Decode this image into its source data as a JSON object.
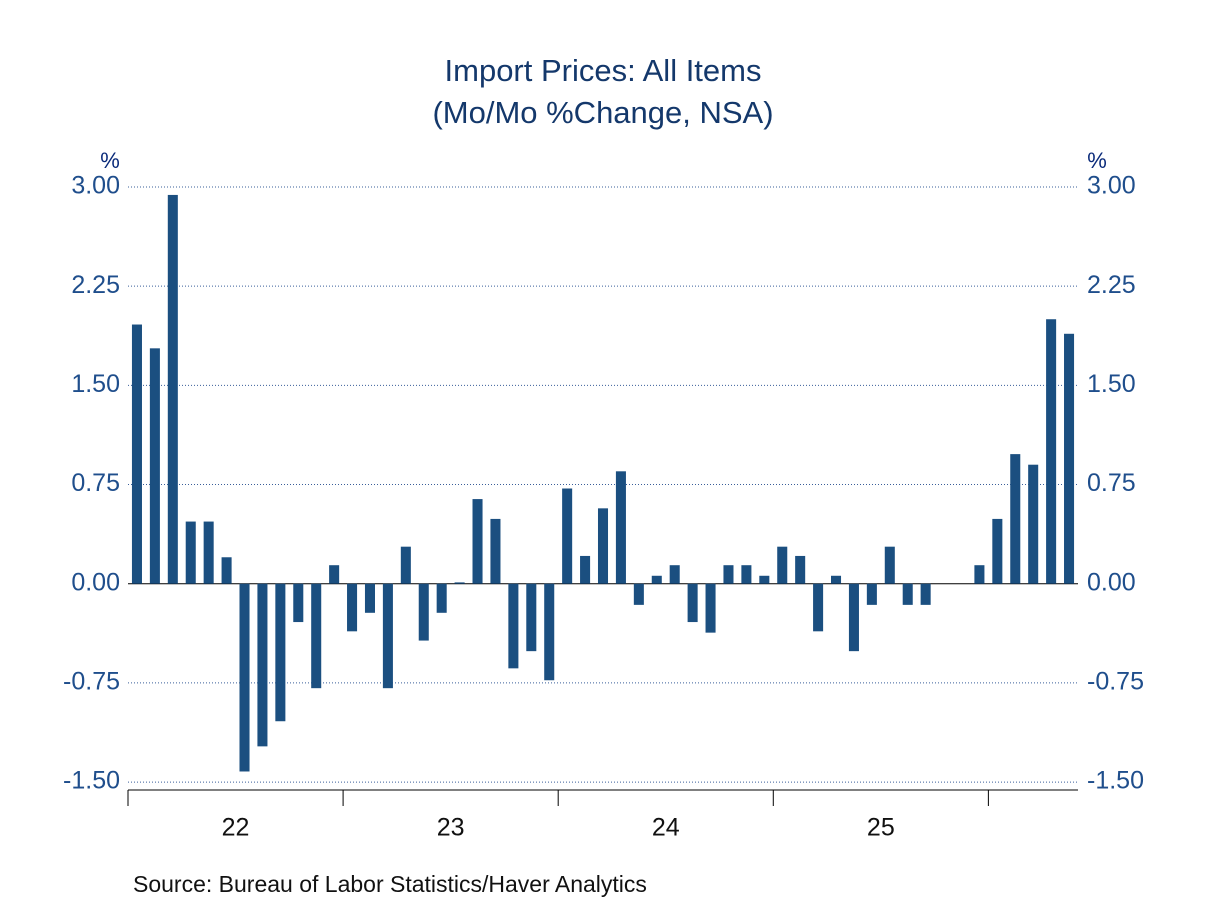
{
  "chart_data": {
    "type": "bar",
    "title": "Import Prices: All Items",
    "subtitle": "(Mo/Mo %Change, NSA)",
    "ylabel": "%",
    "y2label": "%",
    "source": "Source:  Bureau of Labor Statistics/Haver Analytics",
    "color": "#1b4f80",
    "grid": true,
    "categories": [
      null,
      null,
      null,
      null,
      null,
      null,
      "22",
      null,
      null,
      null,
      null,
      null,
      null,
      null,
      null,
      null,
      null,
      null,
      "23",
      null,
      null,
      null,
      null,
      null,
      null,
      null,
      null,
      null,
      null,
      null,
      "24",
      null,
      null,
      null,
      null,
      null,
      null,
      null,
      null,
      null,
      null,
      null,
      "25",
      null,
      null,
      null,
      null,
      null,
      null,
      null,
      null,
      null,
      null
    ],
    "values": [
      1.96,
      1.78,
      2.94,
      0.47,
      0.47,
      0.2,
      -1.42,
      -1.23,
      -1.04,
      -0.29,
      -0.79,
      0.14,
      -0.36,
      -0.22,
      -0.79,
      0.28,
      -0.43,
      -0.22,
      0.01,
      0.64,
      0.49,
      -0.64,
      -0.51,
      -0.73,
      0.72,
      0.21,
      0.57,
      0.85,
      -0.16,
      0.06,
      0.14,
      -0.29,
      -0.37,
      0.14,
      0.14,
      0.06,
      0.28,
      0.21,
      -0.36,
      0.06,
      -0.51,
      -0.16,
      0.28,
      -0.16,
      -0.16,
      null,
      null,
      0.14,
      0.49,
      0.98,
      0.9,
      2.0,
      1.89
    ],
    "ylim": [
      -1.56,
      3.0
    ],
    "yticks": [
      {
        "value": 3.0,
        "label": "3.00"
      },
      {
        "value": 2.25,
        "label": "2.25"
      },
      {
        "value": 1.5,
        "label": "1.50"
      },
      {
        "value": 0.75,
        "label": "0.75"
      },
      {
        "value": 0,
        "label": "0.00"
      },
      {
        "value": -0.75,
        "label": "-0.75"
      },
      {
        "value": -1.5,
        "label": "-1.50"
      }
    ],
    "y2lim": [
      -1.56,
      3.0
    ],
    "y2ticks": [
      {
        "value": 3.0,
        "label": "3.00"
      },
      {
        "value": 2.25,
        "label": "2.25"
      },
      {
        "value": 1.5,
        "label": "1.50"
      },
      {
        "value": 0.75,
        "label": "0.75"
      },
      {
        "value": 0,
        "label": "0.00"
      },
      {
        "value": -0.75,
        "label": "-0.75"
      },
      {
        "value": -1.5,
        "label": "-1.50"
      }
    ]
  }
}
